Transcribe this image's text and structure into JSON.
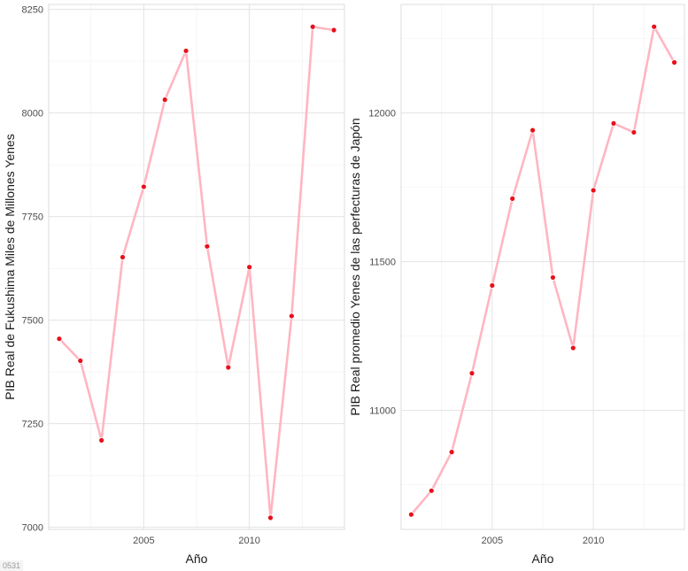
{
  "corner_label": "0531",
  "chart_data": [
    {
      "type": "line",
      "xlabel": "Año",
      "ylabel": "PIB Real de Fukushima Miles de Millones Yenes",
      "x": [
        2001,
        2002,
        2003,
        2004,
        2005,
        2006,
        2007,
        2008,
        2009,
        2010,
        2011,
        2012,
        2013,
        2014
      ],
      "series": [
        {
          "values": [
            7455,
            7402,
            7210,
            7652,
            7822,
            8032,
            8150,
            7678,
            7386,
            7628,
            7023,
            7510,
            8208,
            8200
          ]
        }
      ],
      "xlim": [
        2000.5,
        2014.5
      ],
      "ylim": [
        6995,
        8262
      ],
      "xticks": [
        2005,
        2010
      ],
      "yticks": [
        7000,
        7250,
        7500,
        7750,
        8000,
        8250
      ],
      "grid": true,
      "line_color": "#ffb6c1",
      "point_color": "#e8101a"
    },
    {
      "type": "line",
      "xlabel": "Año",
      "ylabel": "PIB Real promedio Yenes de las perfecturas de Japón",
      "x": [
        2001,
        2002,
        2003,
        2004,
        2005,
        2006,
        2007,
        2008,
        2009,
        2010,
        2011,
        2012,
        2013,
        2014
      ],
      "series": [
        {
          "values": [
            10650,
            10730,
            10860,
            11125,
            11420,
            11712,
            11942,
            11447,
            11210,
            11740,
            11965,
            11935,
            12290,
            12170
          ]
        }
      ],
      "xlim": [
        2000.5,
        2014.5
      ],
      "ylim": [
        10600,
        12365
      ],
      "xticks": [
        2005,
        2010
      ],
      "yticks": [
        11000,
        11500,
        12000
      ],
      "grid": true,
      "line_color": "#ffb6c1",
      "point_color": "#e8101a"
    }
  ]
}
